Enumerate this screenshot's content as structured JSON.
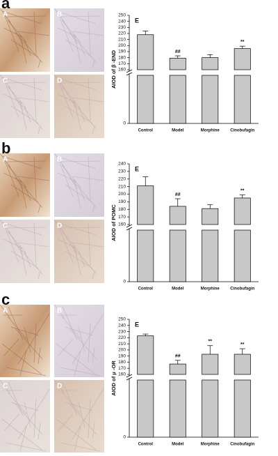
{
  "chart_data": [
    {
      "type": "bar",
      "panel_label": "a",
      "image_labels": [
        "A",
        "B",
        "C",
        "D"
      ],
      "chart_label": "E",
      "ylabel": "AIOD of β -END",
      "categories": [
        "Control",
        "Model",
        "Morphine",
        "Cinobufagin"
      ],
      "values": [
        218,
        179,
        180,
        195
      ],
      "errors": [
        6,
        4,
        5,
        4
      ],
      "annotations": [
        null,
        "##",
        null,
        "**"
      ],
      "color": "#c8c8c8",
      "ylim": [
        0,
        250
      ],
      "axis_break": 160,
      "yticks": [
        0,
        160,
        170,
        180,
        190,
        200,
        210,
        220,
        230,
        240,
        250
      ]
    },
    {
      "type": "bar",
      "panel_label": "b",
      "image_labels": [
        "A",
        "B",
        "C",
        "D"
      ],
      "chart_label": "E",
      "ylabel": "AIOD of POMC",
      "categories": [
        "Control",
        "Model",
        "Morphine",
        "Cinobufagin"
      ],
      "values": [
        211,
        184,
        181,
        195
      ],
      "errors": [
        12,
        10,
        5,
        4
      ],
      "annotations": [
        null,
        "##",
        null,
        "**"
      ],
      "color": "#c8c8c8",
      "ylim": [
        0,
        240
      ],
      "axis_break": 160,
      "yticks": [
        0,
        160,
        170,
        180,
        190,
        200,
        210,
        220,
        230,
        240
      ]
    },
    {
      "type": "bar",
      "panel_label": "c",
      "image_labels": [
        "A",
        "B",
        "C",
        "D"
      ],
      "chart_label": "E",
      "ylabel": "AIOD of μ -OR",
      "categories": [
        "Control",
        "Model",
        "Morphine",
        "Cinobufagin"
      ],
      "values": [
        223,
        177,
        193,
        193
      ],
      "errors": [
        3,
        6,
        14,
        9
      ],
      "annotations": [
        null,
        "##",
        "**",
        "**"
      ],
      "color": "#c8c8c8",
      "ylim": [
        0,
        250
      ],
      "axis_break": 160,
      "yticks": [
        0,
        160,
        170,
        180,
        190,
        200,
        210,
        220,
        230,
        240,
        250
      ]
    }
  ]
}
